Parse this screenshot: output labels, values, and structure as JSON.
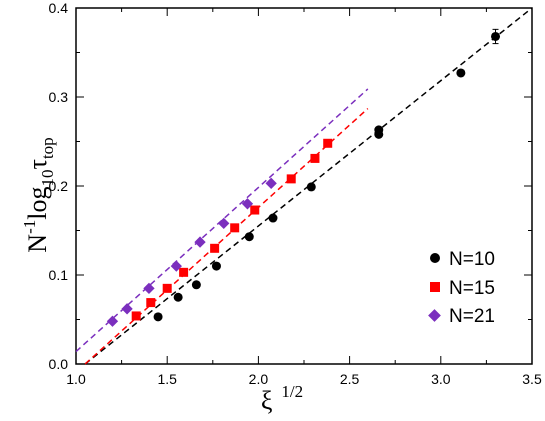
{
  "chart_data": {
    "type": "scatter",
    "xlabel": "ξ",
    "xlabel_sup": "1/2",
    "ylabel_parts": {
      "main": "N",
      "sup": "-1",
      "mid": "log",
      "sub1": "10",
      "tau": "τ",
      "sub2": "top"
    },
    "xlim": [
      1.0,
      3.5
    ],
    "ylim": [
      0.0,
      0.4
    ],
    "x_ticks": [
      1.0,
      1.5,
      2.0,
      2.5,
      3.0,
      3.5
    ],
    "y_ticks": [
      0.0,
      0.1,
      0.2,
      0.3,
      0.4
    ],
    "x_tick_labels": [
      "1.0",
      "1.5",
      "2.0",
      "2.5",
      "3.0",
      "3.5"
    ],
    "y_tick_labels": [
      "0.0",
      "0.1",
      "0.2",
      "0.3",
      "0.4"
    ],
    "grid": false,
    "legend_position": "bottom-right",
    "series": [
      {
        "name": "N=10",
        "color": "#000000",
        "marker": "circle",
        "points": [
          [
            1.45,
            0.053
          ],
          [
            1.56,
            0.075
          ],
          [
            1.66,
            0.089
          ],
          [
            1.77,
            0.11
          ],
          [
            1.95,
            0.143
          ],
          [
            2.08,
            0.164
          ],
          [
            2.29,
            0.199
          ],
          [
            2.66,
            0.258
          ],
          [
            2.66,
            0.263
          ],
          [
            3.11,
            0.327
          ],
          [
            3.3,
            0.368
          ]
        ],
        "error": [
          0,
          0,
          0,
          0,
          0,
          0,
          0,
          0,
          0,
          0,
          0.008
        ],
        "fit": [
          [
            1.05,
            0.0
          ],
          [
            3.5,
            0.4
          ]
        ]
      },
      {
        "name": "N=15",
        "color": "#ff0000",
        "marker": "square",
        "points": [
          [
            1.33,
            0.054
          ],
          [
            1.41,
            0.069
          ],
          [
            1.5,
            0.085
          ],
          [
            1.59,
            0.103
          ],
          [
            1.76,
            0.13
          ],
          [
            1.87,
            0.153
          ],
          [
            1.98,
            0.173
          ],
          [
            2.18,
            0.208
          ],
          [
            2.31,
            0.231
          ],
          [
            2.38,
            0.248
          ]
        ],
        "fit": [
          [
            1.05,
            0.0
          ],
          [
            2.6,
            0.287
          ]
        ]
      },
      {
        "name": "N=21",
        "color": "#7b2fbe",
        "marker": "diamond",
        "points": [
          [
            1.2,
            0.048
          ],
          [
            1.28,
            0.062
          ],
          [
            1.4,
            0.085
          ],
          [
            1.55,
            0.11
          ],
          [
            1.68,
            0.137
          ],
          [
            1.81,
            0.158
          ],
          [
            1.94,
            0.18
          ],
          [
            2.07,
            0.203
          ]
        ],
        "fit": [
          [
            1.0,
            0.014
          ],
          [
            2.6,
            0.309
          ]
        ]
      }
    ]
  }
}
